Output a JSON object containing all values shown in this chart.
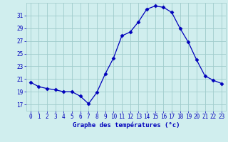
{
  "hours": [
    0,
    1,
    2,
    3,
    4,
    5,
    6,
    7,
    8,
    9,
    10,
    11,
    12,
    13,
    14,
    15,
    16,
    17,
    18,
    19,
    20,
    21,
    22,
    23
  ],
  "temps": [
    20.5,
    19.8,
    19.5,
    19.3,
    19.0,
    19.0,
    18.3,
    17.1,
    18.9,
    21.8,
    24.3,
    27.8,
    28.4,
    30.0,
    32.0,
    32.5,
    32.3,
    31.5,
    29.0,
    26.8,
    24.0,
    21.5,
    20.8,
    20.3
  ],
  "line_color": "#0000bb",
  "marker": "D",
  "markersize": 2.5,
  "bg_color": "#d0eeee",
  "grid_color": "#a0cccc",
  "xlabel": "Graphe des températures (°c)",
  "ylim": [
    16.0,
    33.0
  ],
  "yticks": [
    17,
    19,
    21,
    23,
    25,
    27,
    29,
    31
  ],
  "axis_label_color": "#0000bb",
  "tick_fontsize": 5.5,
  "ylabel_fontsize": 6.5
}
